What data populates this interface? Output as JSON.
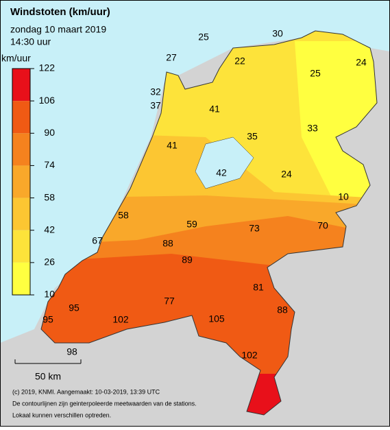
{
  "header": {
    "title": "Windstoten (km/uur)",
    "date": "zondag 10 maart 2019",
    "time": "14:30 uur"
  },
  "legend": {
    "unit": "km/uur",
    "ticks": [
      122,
      106,
      90,
      74,
      58,
      42,
      26,
      10
    ],
    "colors": [
      "#e8101a",
      "#f05a14",
      "#f5821e",
      "#f9a82a",
      "#fcc632",
      "#fde33a",
      "#ffff40"
    ]
  },
  "stations": [
    25,
    30,
    22,
    27,
    25,
    24,
    32,
    37,
    41,
    33,
    35,
    41,
    42,
    24,
    10,
    58,
    59,
    73,
    70,
    67,
    88,
    89,
    81,
    95,
    77,
    88,
    95,
    102,
    105,
    98,
    102
  ],
  "scale": "50 km",
  "footer": [
    "(c) 2019, KNMI. Aangemaakt: 10-03-2019, 13:39 UTC",
    "De contourlijnen zijn geinterpoleerde meetwaarden van de stations.",
    "Lokaal kunnen verschillen optreden."
  ]
}
